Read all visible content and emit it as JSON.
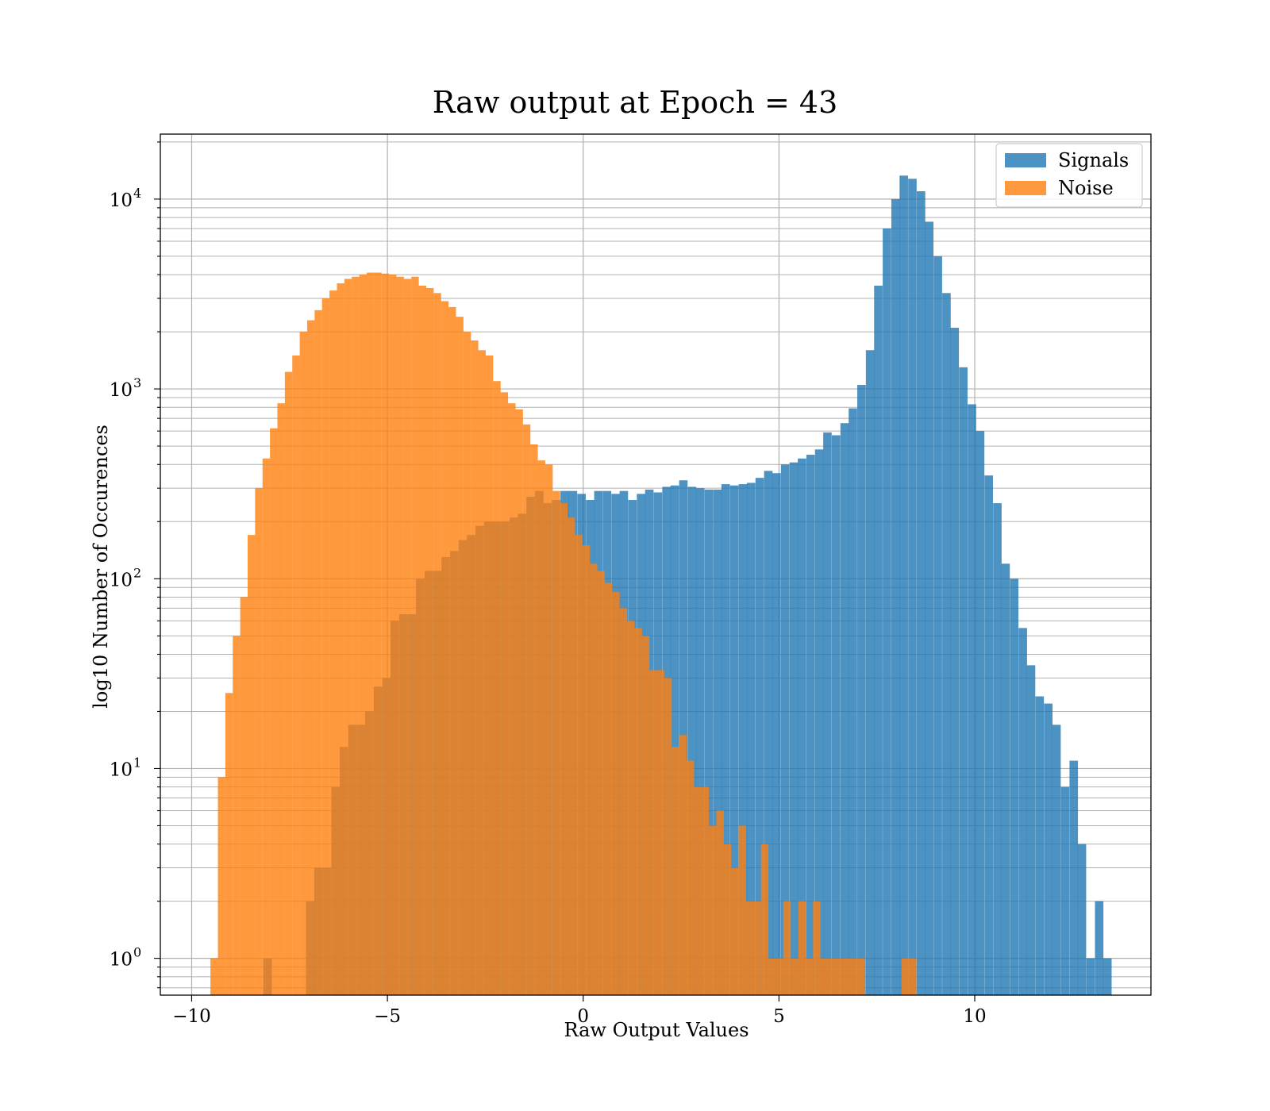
{
  "chart_data": {
    "type": "histogram",
    "title": "Raw output at Epoch = 43",
    "xlabel": "Raw Output Values",
    "ylabel": "log10 Number of Occurences",
    "xlim": [
      -10.8,
      14.5
    ],
    "ylim": [
      0.64,
      22000
    ],
    "yscale": "log",
    "grid": true,
    "legend_position": "top-right",
    "x_ticks": [
      -10,
      -5,
      0,
      5,
      10
    ],
    "x_tick_labels": [
      "−10",
      "−5",
      "0",
      "5",
      "10"
    ],
    "y_ticks": [
      1,
      10,
      100,
      1000,
      10000
    ],
    "y_tick_labels": [
      "10",
      "10",
      "10",
      "10",
      "10"
    ],
    "y_tick_exponents": [
      "0",
      "1",
      "2",
      "3",
      "4"
    ],
    "series": [
      {
        "name": "Signals",
        "color": "#1f77b4",
        "opacity": 0.8,
        "bin_width": 0.216,
        "bins": [
          [
            -8.17,
            1
          ],
          [
            -7.08,
            2
          ],
          [
            -6.87,
            3
          ],
          [
            -6.65,
            3
          ],
          [
            -6.43,
            8
          ],
          [
            -6.22,
            13
          ],
          [
            -6.0,
            17
          ],
          [
            -5.78,
            17
          ],
          [
            -5.57,
            20
          ],
          [
            -5.35,
            27
          ],
          [
            -5.13,
            30
          ],
          [
            -4.92,
            60
          ],
          [
            -4.7,
            65
          ],
          [
            -4.48,
            65
          ],
          [
            -4.27,
            100
          ],
          [
            -4.05,
            110
          ],
          [
            -3.83,
            110
          ],
          [
            -3.62,
            130
          ],
          [
            -3.4,
            140
          ],
          [
            -3.18,
            160
          ],
          [
            -2.97,
            170
          ],
          [
            -2.75,
            190
          ],
          [
            -2.53,
            200
          ],
          [
            -2.32,
            200
          ],
          [
            -2.1,
            200
          ],
          [
            -1.88,
            210
          ],
          [
            -1.67,
            220
          ],
          [
            -1.45,
            270
          ],
          [
            -1.23,
            290
          ],
          [
            -1.02,
            250
          ],
          [
            -0.8,
            260
          ],
          [
            -0.58,
            290
          ],
          [
            -0.37,
            290
          ],
          [
            -0.15,
            280
          ],
          [
            0.07,
            260
          ],
          [
            0.28,
            290
          ],
          [
            0.5,
            290
          ],
          [
            0.72,
            280
          ],
          [
            0.93,
            290
          ],
          [
            1.15,
            260
          ],
          [
            1.37,
            280
          ],
          [
            1.58,
            295
          ],
          [
            1.8,
            285
          ],
          [
            2.02,
            305
          ],
          [
            2.23,
            310
          ],
          [
            2.45,
            330
          ],
          [
            2.67,
            305
          ],
          [
            2.88,
            300
          ],
          [
            3.1,
            295
          ],
          [
            3.32,
            295
          ],
          [
            3.53,
            315
          ],
          [
            3.75,
            310
          ],
          [
            3.97,
            315
          ],
          [
            4.18,
            320
          ],
          [
            4.4,
            340
          ],
          [
            4.62,
            370
          ],
          [
            4.83,
            360
          ],
          [
            5.05,
            400
          ],
          [
            5.27,
            410
          ],
          [
            5.48,
            430
          ],
          [
            5.7,
            450
          ],
          [
            5.92,
            480
          ],
          [
            6.13,
            590
          ],
          [
            6.35,
            570
          ],
          [
            6.57,
            660
          ],
          [
            6.78,
            790
          ],
          [
            7.0,
            1050
          ],
          [
            7.22,
            1600
          ],
          [
            7.43,
            3500
          ],
          [
            7.65,
            7000
          ],
          [
            7.87,
            10000
          ],
          [
            8.08,
            13300
          ],
          [
            8.3,
            12800
          ],
          [
            8.52,
            11000
          ],
          [
            8.73,
            7600
          ],
          [
            8.95,
            5000
          ],
          [
            9.17,
            3200
          ],
          [
            9.38,
            2100
          ],
          [
            9.6,
            1300
          ],
          [
            9.82,
            830
          ],
          [
            10.03,
            600
          ],
          [
            10.25,
            350
          ],
          [
            10.47,
            250
          ],
          [
            10.68,
            120
          ],
          [
            10.9,
            100
          ],
          [
            11.12,
            55
          ],
          [
            11.33,
            35
          ],
          [
            11.55,
            24
          ],
          [
            11.77,
            22
          ],
          [
            11.98,
            17
          ],
          [
            12.2,
            8
          ],
          [
            12.42,
            11
          ],
          [
            12.63,
            4
          ],
          [
            12.85,
            1
          ],
          [
            13.07,
            2
          ],
          [
            13.28,
            1
          ]
        ]
      },
      {
        "name": "Noise",
        "color": "#ff7f0e",
        "opacity": 0.8,
        "bin_width": 0.191,
        "bins": [
          [
            -9.52,
            1
          ],
          [
            -9.33,
            9
          ],
          [
            -9.14,
            25
          ],
          [
            -8.95,
            50
          ],
          [
            -8.76,
            80
          ],
          [
            -8.57,
            170
          ],
          [
            -8.38,
            300
          ],
          [
            -8.19,
            430
          ],
          [
            -8.0,
            620
          ],
          [
            -7.81,
            840
          ],
          [
            -7.62,
            1230
          ],
          [
            -7.43,
            1500
          ],
          [
            -7.24,
            2000
          ],
          [
            -7.05,
            2300
          ],
          [
            -6.86,
            2600
          ],
          [
            -6.67,
            3000
          ],
          [
            -6.48,
            3300
          ],
          [
            -6.29,
            3600
          ],
          [
            -6.1,
            3800
          ],
          [
            -5.91,
            3900
          ],
          [
            -5.72,
            4000
          ],
          [
            -5.53,
            4100
          ],
          [
            -5.34,
            4100
          ],
          [
            -5.15,
            4050
          ],
          [
            -4.96,
            4000
          ],
          [
            -4.77,
            3900
          ],
          [
            -4.58,
            3800
          ],
          [
            -4.39,
            3900
          ],
          [
            -4.2,
            3500
          ],
          [
            -4.01,
            3400
          ],
          [
            -3.82,
            3200
          ],
          [
            -3.63,
            2900
          ],
          [
            -3.44,
            2700
          ],
          [
            -3.25,
            2400
          ],
          [
            -3.06,
            2000
          ],
          [
            -2.87,
            1800
          ],
          [
            -2.68,
            1600
          ],
          [
            -2.49,
            1500
          ],
          [
            -2.3,
            1100
          ],
          [
            -2.11,
            960
          ],
          [
            -1.92,
            840
          ],
          [
            -1.73,
            780
          ],
          [
            -1.54,
            650
          ],
          [
            -1.35,
            510
          ],
          [
            -1.16,
            420
          ],
          [
            -0.97,
            400
          ],
          [
            -0.78,
            290
          ],
          [
            -0.59,
            250
          ],
          [
            -0.4,
            210
          ],
          [
            -0.21,
            170
          ],
          [
            -0.02,
            150
          ],
          [
            0.17,
            120
          ],
          [
            0.36,
            110
          ],
          [
            0.55,
            95
          ],
          [
            0.74,
            85
          ],
          [
            0.93,
            70
          ],
          [
            1.12,
            60
          ],
          [
            1.31,
            55
          ],
          [
            1.5,
            50
          ],
          [
            1.69,
            33
          ],
          [
            1.88,
            33
          ],
          [
            2.07,
            30
          ],
          [
            2.26,
            13
          ],
          [
            2.45,
            15
          ],
          [
            2.64,
            11
          ],
          [
            2.83,
            8
          ],
          [
            3.02,
            8
          ],
          [
            3.21,
            5
          ],
          [
            3.4,
            6
          ],
          [
            3.59,
            4
          ],
          [
            3.78,
            3
          ],
          [
            3.97,
            5
          ],
          [
            4.16,
            2
          ],
          [
            4.35,
            2
          ],
          [
            4.54,
            4
          ],
          [
            4.73,
            1
          ],
          [
            4.92,
            1
          ],
          [
            5.11,
            2
          ],
          [
            5.3,
            1
          ],
          [
            5.49,
            2
          ],
          [
            5.68,
            1
          ],
          [
            5.87,
            2
          ],
          [
            6.06,
            1
          ],
          [
            6.25,
            1
          ],
          [
            6.44,
            1
          ],
          [
            6.63,
            1
          ],
          [
            6.82,
            1
          ],
          [
            7.01,
            1
          ],
          [
            8.13,
            1
          ],
          [
            8.32,
            1
          ]
        ]
      }
    ]
  }
}
